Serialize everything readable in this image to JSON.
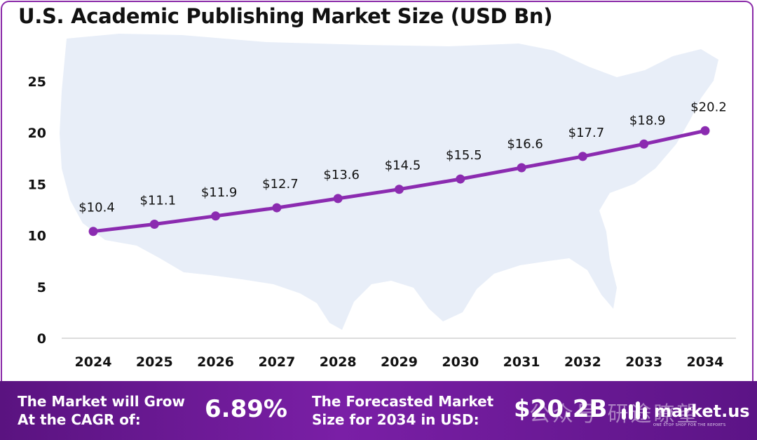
{
  "chart_data": {
    "type": "line",
    "title": "U.S. Academic Publishing Market Size (USD Bn)",
    "categories": [
      "2024",
      "2025",
      "2026",
      "2027",
      "2028",
      "2029",
      "2030",
      "2031",
      "2032",
      "2033",
      "2034"
    ],
    "values": [
      10.4,
      11.1,
      11.9,
      12.7,
      13.6,
      14.5,
      15.5,
      16.6,
      17.7,
      18.9,
      20.2
    ],
    "data_labels": [
      "$10.4",
      "$11.1",
      "$11.9",
      "$12.7",
      "$13.6",
      "$14.5",
      "$15.5",
      "$16.6",
      "$17.7",
      "$18.9",
      "$20.2"
    ],
    "y_ticks": [
      "0",
      "5",
      "10",
      "15",
      "20",
      "25"
    ],
    "ylim": [
      0,
      25
    ],
    "line_color": "#8b2bb0",
    "grid": false
  },
  "footer": {
    "cagr_label_line1": "The Market will Grow",
    "cagr_label_line2": "At the CAGR of:",
    "cagr_value": "6.89%",
    "forecast_label_line1": "The Forecasted Market",
    "forecast_label_line2": "Size for 2034 in USD:",
    "forecast_value": "$20.2B",
    "brand": "market.us",
    "brand_tagline": "ONE STOP SHOP FOR THE REPORTS",
    "watermark": "公众号·研途瞭望"
  },
  "colors": {
    "accent": "#8b2bb0",
    "footer_bg": "#6a1b96",
    "map_fill": "#e8eef8"
  }
}
